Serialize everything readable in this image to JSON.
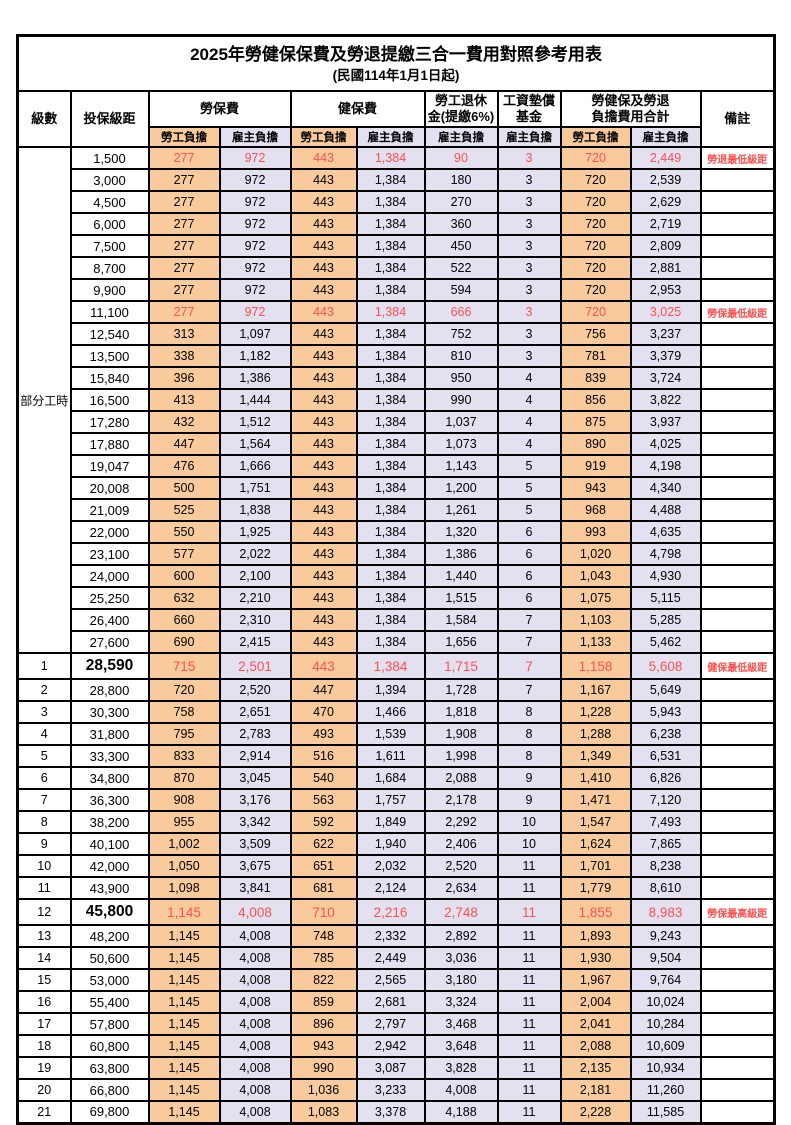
{
  "title": "2025年勞健保保費及勞退提繳三合一費用對照參考用表",
  "subtitle": "(民國114年1月1日起)",
  "colors": {
    "employee_cell_bg": "#F9CB9C",
    "employer_cell_bg": "#E3E0F0",
    "highlight_text": "#FF5050",
    "border": "#000000"
  },
  "header": {
    "level": "級數",
    "bracket": "投保級距",
    "labor_insurance": "勞保費",
    "health_insurance": "健保費",
    "pension_line1": "勞工退休",
    "pension_line2": "金(提繳6%)",
    "wage_fund_line1": "工資墊償",
    "wage_fund_line2": "基金",
    "total_line1": "勞健保及勞退",
    "total_line2": "負擔費用合計",
    "remark": "備註",
    "employee": "勞工負擔",
    "employer": "雇主負擔"
  },
  "left_group_label": "部分工時",
  "rows": [
    {
      "level": "",
      "bracket": "1,500",
      "labor_emp": "277",
      "labor_er": "972",
      "health_emp": "443",
      "health_er": "1,384",
      "pension_er": "90",
      "fund_er": "3",
      "total_emp": "720",
      "total_er": "2,449",
      "note": "勞退最低級距",
      "highlight": true,
      "big": false
    },
    {
      "level": "",
      "bracket": "3,000",
      "labor_emp": "277",
      "labor_er": "972",
      "health_emp": "443",
      "health_er": "1,384",
      "pension_er": "180",
      "fund_er": "3",
      "total_emp": "720",
      "total_er": "2,539",
      "note": "",
      "highlight": false,
      "big": false
    },
    {
      "level": "",
      "bracket": "4,500",
      "labor_emp": "277",
      "labor_er": "972",
      "health_emp": "443",
      "health_er": "1,384",
      "pension_er": "270",
      "fund_er": "3",
      "total_emp": "720",
      "total_er": "2,629",
      "note": "",
      "highlight": false,
      "big": false
    },
    {
      "level": "",
      "bracket": "6,000",
      "labor_emp": "277",
      "labor_er": "972",
      "health_emp": "443",
      "health_er": "1,384",
      "pension_er": "360",
      "fund_er": "3",
      "total_emp": "720",
      "total_er": "2,719",
      "note": "",
      "highlight": false,
      "big": false
    },
    {
      "level": "",
      "bracket": "7,500",
      "labor_emp": "277",
      "labor_er": "972",
      "health_emp": "443",
      "health_er": "1,384",
      "pension_er": "450",
      "fund_er": "3",
      "total_emp": "720",
      "total_er": "2,809",
      "note": "",
      "highlight": false,
      "big": false
    },
    {
      "level": "",
      "bracket": "8,700",
      "labor_emp": "277",
      "labor_er": "972",
      "health_emp": "443",
      "health_er": "1,384",
      "pension_er": "522",
      "fund_er": "3",
      "total_emp": "720",
      "total_er": "2,881",
      "note": "",
      "highlight": false,
      "big": false
    },
    {
      "level": "",
      "bracket": "9,900",
      "labor_emp": "277",
      "labor_er": "972",
      "health_emp": "443",
      "health_er": "1,384",
      "pension_er": "594",
      "fund_er": "3",
      "total_emp": "720",
      "total_er": "2,953",
      "note": "",
      "highlight": false,
      "big": false
    },
    {
      "level": "",
      "bracket": "11,100",
      "labor_emp": "277",
      "labor_er": "972",
      "health_emp": "443",
      "health_er": "1,384",
      "pension_er": "666",
      "fund_er": "3",
      "total_emp": "720",
      "total_er": "3,025",
      "note": "勞保最低級距",
      "highlight": true,
      "big": false
    },
    {
      "level": "",
      "bracket": "12,540",
      "labor_emp": "313",
      "labor_er": "1,097",
      "health_emp": "443",
      "health_er": "1,384",
      "pension_er": "752",
      "fund_er": "3",
      "total_emp": "756",
      "total_er": "3,237",
      "note": "",
      "highlight": false,
      "big": false
    },
    {
      "level": "",
      "bracket": "13,500",
      "labor_emp": "338",
      "labor_er": "1,182",
      "health_emp": "443",
      "health_er": "1,384",
      "pension_er": "810",
      "fund_er": "3",
      "total_emp": "781",
      "total_er": "3,379",
      "note": "",
      "highlight": false,
      "big": false
    },
    {
      "level": "",
      "bracket": "15,840",
      "labor_emp": "396",
      "labor_er": "1,386",
      "health_emp": "443",
      "health_er": "1,384",
      "pension_er": "950",
      "fund_er": "4",
      "total_emp": "839",
      "total_er": "3,724",
      "note": "",
      "highlight": false,
      "big": false
    },
    {
      "level": "",
      "bracket": "16,500",
      "labor_emp": "413",
      "labor_er": "1,444",
      "health_emp": "443",
      "health_er": "1,384",
      "pension_er": "990",
      "fund_er": "4",
      "total_emp": "856",
      "total_er": "3,822",
      "note": "",
      "highlight": false,
      "big": false
    },
    {
      "level": "",
      "bracket": "17,280",
      "labor_emp": "432",
      "labor_er": "1,512",
      "health_emp": "443",
      "health_er": "1,384",
      "pension_er": "1,037",
      "fund_er": "4",
      "total_emp": "875",
      "total_er": "3,937",
      "note": "",
      "highlight": false,
      "big": false
    },
    {
      "level": "",
      "bracket": "17,880",
      "labor_emp": "447",
      "labor_er": "1,564",
      "health_emp": "443",
      "health_er": "1,384",
      "pension_er": "1,073",
      "fund_er": "4",
      "total_emp": "890",
      "total_er": "4,025",
      "note": "",
      "highlight": false,
      "big": false
    },
    {
      "level": "",
      "bracket": "19,047",
      "labor_emp": "476",
      "labor_er": "1,666",
      "health_emp": "443",
      "health_er": "1,384",
      "pension_er": "1,143",
      "fund_er": "5",
      "total_emp": "919",
      "total_er": "4,198",
      "note": "",
      "highlight": false,
      "big": false
    },
    {
      "level": "",
      "bracket": "20,008",
      "labor_emp": "500",
      "labor_er": "1,751",
      "health_emp": "443",
      "health_er": "1,384",
      "pension_er": "1,200",
      "fund_er": "5",
      "total_emp": "943",
      "total_er": "4,340",
      "note": "",
      "highlight": false,
      "big": false
    },
    {
      "level": "",
      "bracket": "21,009",
      "labor_emp": "525",
      "labor_er": "1,838",
      "health_emp": "443",
      "health_er": "1,384",
      "pension_er": "1,261",
      "fund_er": "5",
      "total_emp": "968",
      "total_er": "4,488",
      "note": "",
      "highlight": false,
      "big": false
    },
    {
      "level": "",
      "bracket": "22,000",
      "labor_emp": "550",
      "labor_er": "1,925",
      "health_emp": "443",
      "health_er": "1,384",
      "pension_er": "1,320",
      "fund_er": "6",
      "total_emp": "993",
      "total_er": "4,635",
      "note": "",
      "highlight": false,
      "big": false
    },
    {
      "level": "",
      "bracket": "23,100",
      "labor_emp": "577",
      "labor_er": "2,022",
      "health_emp": "443",
      "health_er": "1,384",
      "pension_er": "1,386",
      "fund_er": "6",
      "total_emp": "1,020",
      "total_er": "4,798",
      "note": "",
      "highlight": false,
      "big": false
    },
    {
      "level": "",
      "bracket": "24,000",
      "labor_emp": "600",
      "labor_er": "2,100",
      "health_emp": "443",
      "health_er": "1,384",
      "pension_er": "1,440",
      "fund_er": "6",
      "total_emp": "1,043",
      "total_er": "4,930",
      "note": "",
      "highlight": false,
      "big": false
    },
    {
      "level": "",
      "bracket": "25,250",
      "labor_emp": "632",
      "labor_er": "2,210",
      "health_emp": "443",
      "health_er": "1,384",
      "pension_er": "1,515",
      "fund_er": "6",
      "total_emp": "1,075",
      "total_er": "5,115",
      "note": "",
      "highlight": false,
      "big": false
    },
    {
      "level": "",
      "bracket": "26,400",
      "labor_emp": "660",
      "labor_er": "2,310",
      "health_emp": "443",
      "health_er": "1,384",
      "pension_er": "1,584",
      "fund_er": "7",
      "total_emp": "1,103",
      "total_er": "5,285",
      "note": "",
      "highlight": false,
      "big": false
    },
    {
      "level": "",
      "bracket": "27,600",
      "labor_emp": "690",
      "labor_er": "2,415",
      "health_emp": "443",
      "health_er": "1,384",
      "pension_er": "1,656",
      "fund_er": "7",
      "total_emp": "1,133",
      "total_er": "5,462",
      "note": "",
      "highlight": false,
      "big": false
    },
    {
      "level": "1",
      "bracket": "28,590",
      "labor_emp": "715",
      "labor_er": "2,501",
      "health_emp": "443",
      "health_er": "1,384",
      "pension_er": "1,715",
      "fund_er": "7",
      "total_emp": "1,158",
      "total_er": "5,608",
      "note": "健保最低級距",
      "highlight": true,
      "big": true
    },
    {
      "level": "2",
      "bracket": "28,800",
      "labor_emp": "720",
      "labor_er": "2,520",
      "health_emp": "447",
      "health_er": "1,394",
      "pension_er": "1,728",
      "fund_er": "7",
      "total_emp": "1,167",
      "total_er": "5,649",
      "note": "",
      "highlight": false,
      "big": false
    },
    {
      "level": "3",
      "bracket": "30,300",
      "labor_emp": "758",
      "labor_er": "2,651",
      "health_emp": "470",
      "health_er": "1,466",
      "pension_er": "1,818",
      "fund_er": "8",
      "total_emp": "1,228",
      "total_er": "5,943",
      "note": "",
      "highlight": false,
      "big": false
    },
    {
      "level": "4",
      "bracket": "31,800",
      "labor_emp": "795",
      "labor_er": "2,783",
      "health_emp": "493",
      "health_er": "1,539",
      "pension_er": "1,908",
      "fund_er": "8",
      "total_emp": "1,288",
      "total_er": "6,238",
      "note": "",
      "highlight": false,
      "big": false
    },
    {
      "level": "5",
      "bracket": "33,300",
      "labor_emp": "833",
      "labor_er": "2,914",
      "health_emp": "516",
      "health_er": "1,611",
      "pension_er": "1,998",
      "fund_er": "8",
      "total_emp": "1,349",
      "total_er": "6,531",
      "note": "",
      "highlight": false,
      "big": false
    },
    {
      "level": "6",
      "bracket": "34,800",
      "labor_emp": "870",
      "labor_er": "3,045",
      "health_emp": "540",
      "health_er": "1,684",
      "pension_er": "2,088",
      "fund_er": "9",
      "total_emp": "1,410",
      "total_er": "6,826",
      "note": "",
      "highlight": false,
      "big": false
    },
    {
      "level": "7",
      "bracket": "36,300",
      "labor_emp": "908",
      "labor_er": "3,176",
      "health_emp": "563",
      "health_er": "1,757",
      "pension_er": "2,178",
      "fund_er": "9",
      "total_emp": "1,471",
      "total_er": "7,120",
      "note": "",
      "highlight": false,
      "big": false
    },
    {
      "level": "8",
      "bracket": "38,200",
      "labor_emp": "955",
      "labor_er": "3,342",
      "health_emp": "592",
      "health_er": "1,849",
      "pension_er": "2,292",
      "fund_er": "10",
      "total_emp": "1,547",
      "total_er": "7,493",
      "note": "",
      "highlight": false,
      "big": false
    },
    {
      "level": "9",
      "bracket": "40,100",
      "labor_emp": "1,002",
      "labor_er": "3,509",
      "health_emp": "622",
      "health_er": "1,940",
      "pension_er": "2,406",
      "fund_er": "10",
      "total_emp": "1,624",
      "total_er": "7,865",
      "note": "",
      "highlight": false,
      "big": false
    },
    {
      "level": "10",
      "bracket": "42,000",
      "labor_emp": "1,050",
      "labor_er": "3,675",
      "health_emp": "651",
      "health_er": "2,032",
      "pension_er": "2,520",
      "fund_er": "11",
      "total_emp": "1,701",
      "total_er": "8,238",
      "note": "",
      "highlight": false,
      "big": false
    },
    {
      "level": "11",
      "bracket": "43,900",
      "labor_emp": "1,098",
      "labor_er": "3,841",
      "health_emp": "681",
      "health_er": "2,124",
      "pension_er": "2,634",
      "fund_er": "11",
      "total_emp": "1,779",
      "total_er": "8,610",
      "note": "",
      "highlight": false,
      "big": false
    },
    {
      "level": "12",
      "bracket": "45,800",
      "labor_emp": "1,145",
      "labor_er": "4,008",
      "health_emp": "710",
      "health_er": "2,216",
      "pension_er": "2,748",
      "fund_er": "11",
      "total_emp": "1,855",
      "total_er": "8,983",
      "note": "勞保最高級距",
      "highlight": true,
      "big": true
    },
    {
      "level": "13",
      "bracket": "48,200",
      "labor_emp": "1,145",
      "labor_er": "4,008",
      "health_emp": "748",
      "health_er": "2,332",
      "pension_er": "2,892",
      "fund_er": "11",
      "total_emp": "1,893",
      "total_er": "9,243",
      "note": "",
      "highlight": false,
      "big": false
    },
    {
      "level": "14",
      "bracket": "50,600",
      "labor_emp": "1,145",
      "labor_er": "4,008",
      "health_emp": "785",
      "health_er": "2,449",
      "pension_er": "3,036",
      "fund_er": "11",
      "total_emp": "1,930",
      "total_er": "9,504",
      "note": "",
      "highlight": false,
      "big": false
    },
    {
      "level": "15",
      "bracket": "53,000",
      "labor_emp": "1,145",
      "labor_er": "4,008",
      "health_emp": "822",
      "health_er": "2,565",
      "pension_er": "3,180",
      "fund_er": "11",
      "total_emp": "1,967",
      "total_er": "9,764",
      "note": "",
      "highlight": false,
      "big": false
    },
    {
      "level": "16",
      "bracket": "55,400",
      "labor_emp": "1,145",
      "labor_er": "4,008",
      "health_emp": "859",
      "health_er": "2,681",
      "pension_er": "3,324",
      "fund_er": "11",
      "total_emp": "2,004",
      "total_er": "10,024",
      "note": "",
      "highlight": false,
      "big": false
    },
    {
      "level": "17",
      "bracket": "57,800",
      "labor_emp": "1,145",
      "labor_er": "4,008",
      "health_emp": "896",
      "health_er": "2,797",
      "pension_er": "3,468",
      "fund_er": "11",
      "total_emp": "2,041",
      "total_er": "10,284",
      "note": "",
      "highlight": false,
      "big": false
    },
    {
      "level": "18",
      "bracket": "60,800",
      "labor_emp": "1,145",
      "labor_er": "4,008",
      "health_emp": "943",
      "health_er": "2,942",
      "pension_er": "3,648",
      "fund_er": "11",
      "total_emp": "2,088",
      "total_er": "10,609",
      "note": "",
      "highlight": false,
      "big": false
    },
    {
      "level": "19",
      "bracket": "63,800",
      "labor_emp": "1,145",
      "labor_er": "4,008",
      "health_emp": "990",
      "health_er": "3,087",
      "pension_er": "3,828",
      "fund_er": "11",
      "total_emp": "2,135",
      "total_er": "10,934",
      "note": "",
      "highlight": false,
      "big": false
    },
    {
      "level": "20",
      "bracket": "66,800",
      "labor_emp": "1,145",
      "labor_er": "4,008",
      "health_emp": "1,036",
      "health_er": "3,233",
      "pension_er": "4,008",
      "fund_er": "11",
      "total_emp": "2,181",
      "total_er": "11,260",
      "note": "",
      "highlight": false,
      "big": false
    },
    {
      "level": "21",
      "bracket": "69,800",
      "labor_emp": "1,145",
      "labor_er": "4,008",
      "health_emp": "1,083",
      "health_er": "3,378",
      "pension_er": "4,188",
      "fund_er": "11",
      "total_emp": "2,228",
      "total_er": "11,585",
      "note": "",
      "highlight": false,
      "big": false
    }
  ]
}
